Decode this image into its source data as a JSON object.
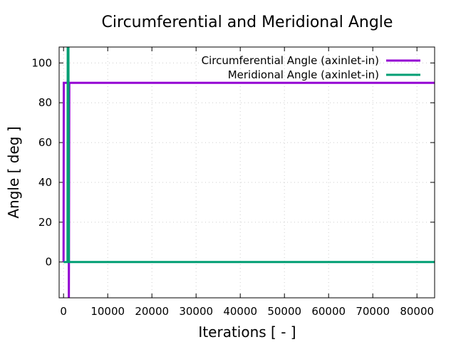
{
  "chart_data": {
    "type": "line",
    "title": "Circumferential and Meridional Angle",
    "xlabel": "Iterations [ - ]",
    "ylabel": "Angle [ deg ]",
    "xlim": [
      -1000,
      84000
    ],
    "ylim": [
      -18,
      108
    ],
    "xticks": [
      0,
      10000,
      20000,
      30000,
      40000,
      50000,
      60000,
      70000,
      80000
    ],
    "yticks": [
      0,
      20,
      40,
      60,
      80,
      100
    ],
    "grid": true,
    "legend_position": "top-right",
    "series": [
      {
        "name": "Circumferential Angle (axinlet-in)",
        "color": "#9400d3",
        "x": [
          0,
          50,
          100,
          150,
          200,
          250,
          400,
          600,
          800,
          1000,
          1150,
          1200,
          1300,
          2000,
          10000,
          30000,
          50000,
          70000,
          84000
        ],
        "y": [
          0,
          90,
          90,
          90,
          90,
          90,
          90,
          90,
          90,
          90,
          90,
          -18,
          90,
          90,
          90,
          90,
          90,
          90,
          90
        ]
      },
      {
        "name": "Meridional Angle (axinlet-in)",
        "color": "#009e73",
        "x": [
          0,
          100,
          200,
          400,
          600,
          800,
          900,
          950,
          1000,
          1100,
          1200,
          1300,
          2000,
          10000,
          30000,
          50000,
          70000,
          84000
        ],
        "y": [
          0,
          0,
          0,
          0,
          0,
          0,
          0,
          108,
          0,
          108,
          0,
          0,
          0,
          0,
          0,
          0,
          0,
          0
        ]
      }
    ]
  }
}
